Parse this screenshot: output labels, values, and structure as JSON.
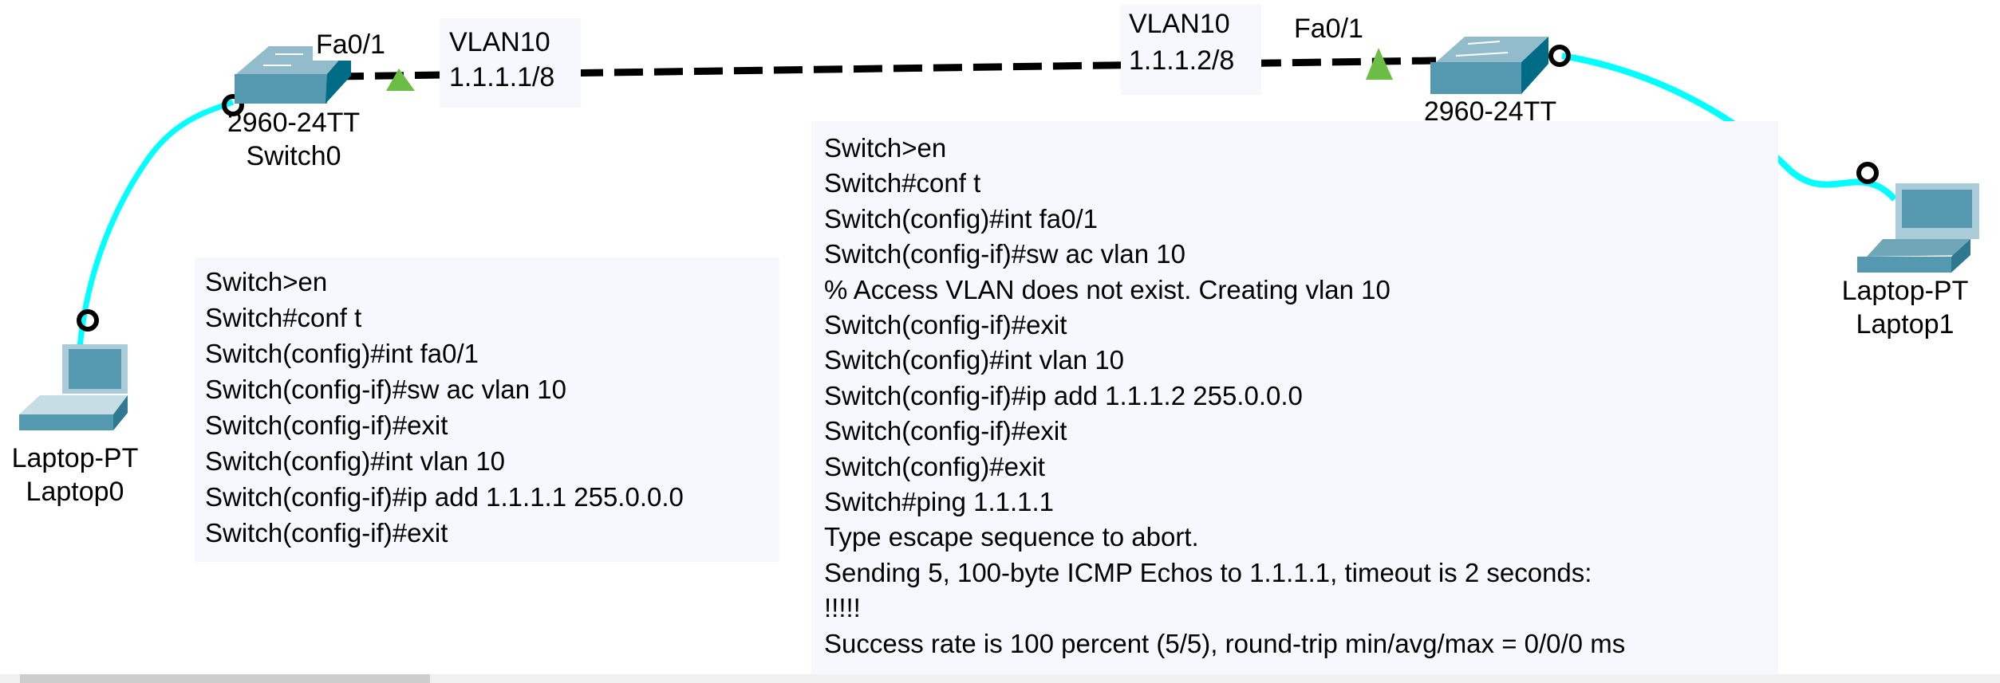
{
  "colors": {
    "cable_cyan": "#00ffff",
    "trunk_black": "#000000",
    "link_up_green": "#6cbd45",
    "device_teal": "#5499b0",
    "note_bg": "#f6f8fd"
  },
  "devices": {
    "switch0": {
      "model": "2960-24TT",
      "name": "Switch0",
      "port": "Fa0/1",
      "icon": "switch-icon"
    },
    "switch1": {
      "model": "2960-24TT",
      "port": "Fa0/1",
      "icon": "switch-icon"
    },
    "laptop0": {
      "model": "Laptop-PT",
      "name": "Laptop0",
      "icon": "laptop-icon"
    },
    "laptop1": {
      "model": "Laptop-PT",
      "name": "Laptop1",
      "icon": "laptop-icon"
    }
  },
  "vlan_labels": [
    {
      "vlan": "VLAN10",
      "ip": "1.1.1.1/8"
    },
    {
      "vlan": "VLAN10",
      "ip": "1.1.1.2/8"
    }
  ],
  "notes": {
    "left": [
      "Switch>en",
      "Switch#conf t",
      "Switch(config)#int fa0/1",
      "Switch(config-if)#sw ac vlan 10",
      "Switch(config-if)#exit",
      "Switch(config)#int vlan 10",
      "Switch(config-if)#ip add 1.1.1.1 255.0.0.0",
      "Switch(config-if)#exit"
    ],
    "right": [
      "Switch>en",
      "Switch#conf t",
      "Switch(config)#int fa0/1",
      "Switch(config-if)#sw ac vlan 10",
      "% Access VLAN does not exist. Creating vlan 10",
      "Switch(config-if)#exit",
      "Switch(config)#int vlan 10",
      "Switch(config-if)#ip add 1.1.1.2 255.0.0.0",
      "Switch(config-if)#exit",
      "Switch(config)#exit",
      "Switch#ping 1.1.1.1",
      "Type escape sequence to abort.",
      "Sending 5, 100-byte ICMP Echos to 1.1.1.1, timeout is 2 seconds:",
      "!!!!!",
      "Success rate is 100 percent (5/5), round-trip min/avg/max = 0/0/0 ms"
    ]
  }
}
